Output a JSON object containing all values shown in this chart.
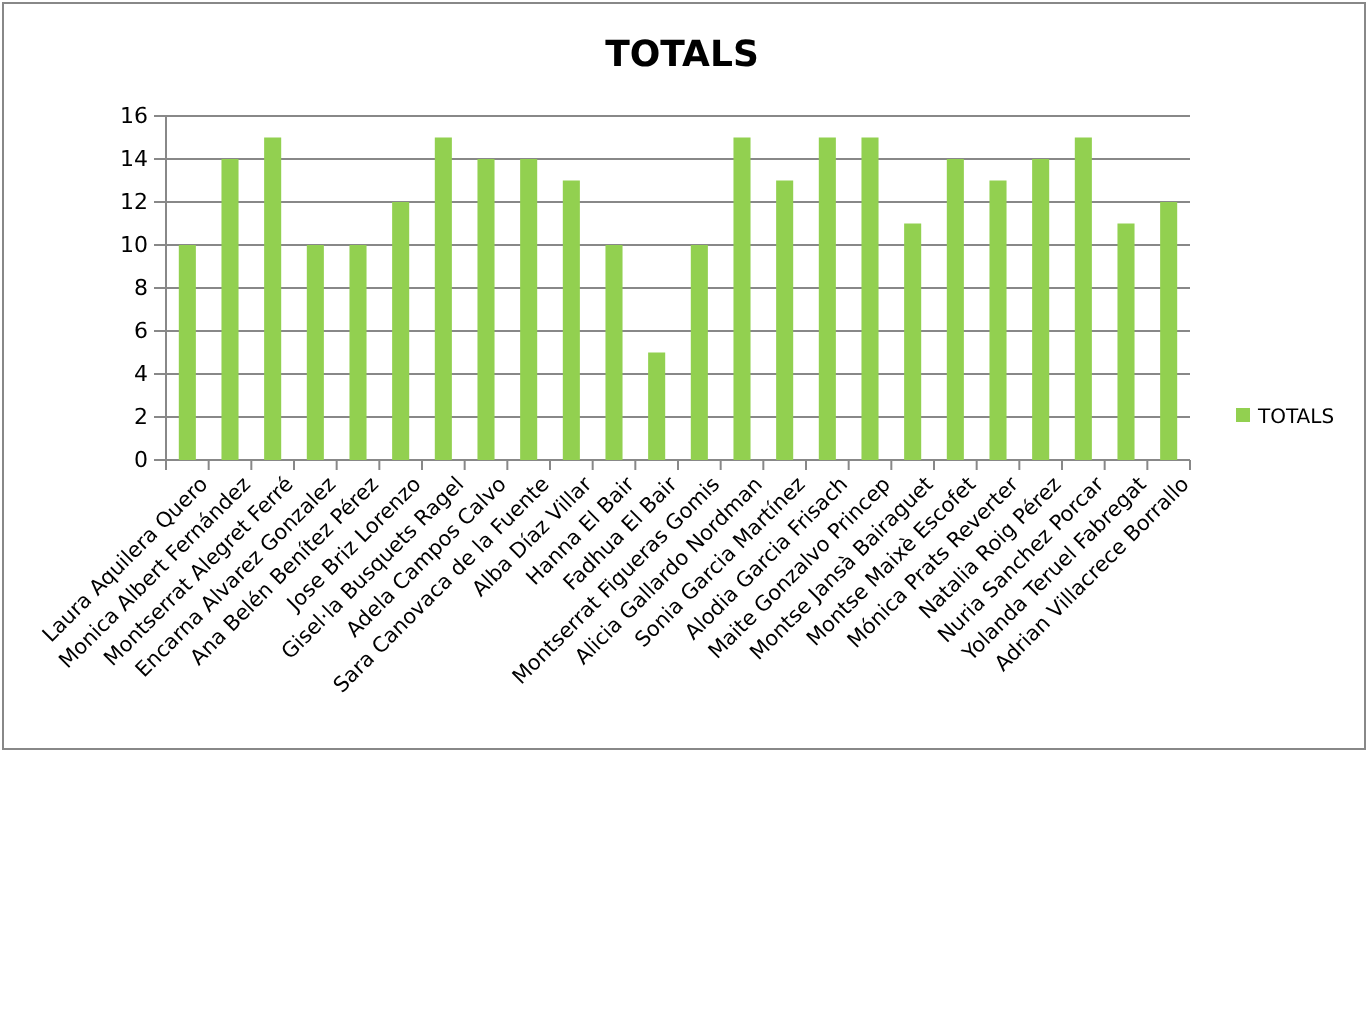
{
  "chart_data": {
    "type": "bar",
    "title": "TOTALS",
    "categories": [
      "Laura Aquilera Quero",
      "Monica Albert Fernández",
      "Montserrat Alegret Ferré",
      "Encarna Alvarez Gonzalez",
      "Ana Belén Benítez Pérez",
      "Jose Briz Lorenzo",
      "Gisel·la Busquets Ragel",
      "Adela Campos Calvo",
      "Sara Canovaca de la Fuente",
      "Alba Díaz Villar",
      "Hanna El Bair",
      "Fadhua El Bair",
      "Montserrat Figueras Gomis",
      "Alicia Gallardo Nordman",
      "Sonia Garcia Martínez",
      "Alodia Garcia Frisach",
      "Maite Gonzalvo Princep",
      "Montse Jansà Bairaguet",
      "Montse Maixè Escofet",
      "Mónica Prats Reverter",
      "Natalia Roig Pérez",
      "Nuria Sanchez Porcar",
      "Yolanda Teruel Fabregat",
      "Adrian Villacrece Borrallo"
    ],
    "series": [
      {
        "name": "TOTALS",
        "color": "#92d050",
        "values": [
          10,
          14,
          15,
          10,
          10,
          12,
          15,
          14,
          14,
          13,
          10,
          5,
          10,
          15,
          13,
          15,
          15,
          11,
          14,
          13,
          14,
          15,
          11,
          12
        ]
      }
    ],
    "ylim": [
      0,
      16
    ],
    "yticks": [
      0,
      2,
      4,
      6,
      8,
      10,
      12,
      14,
      16
    ],
    "grid": "y",
    "legend": "right"
  }
}
